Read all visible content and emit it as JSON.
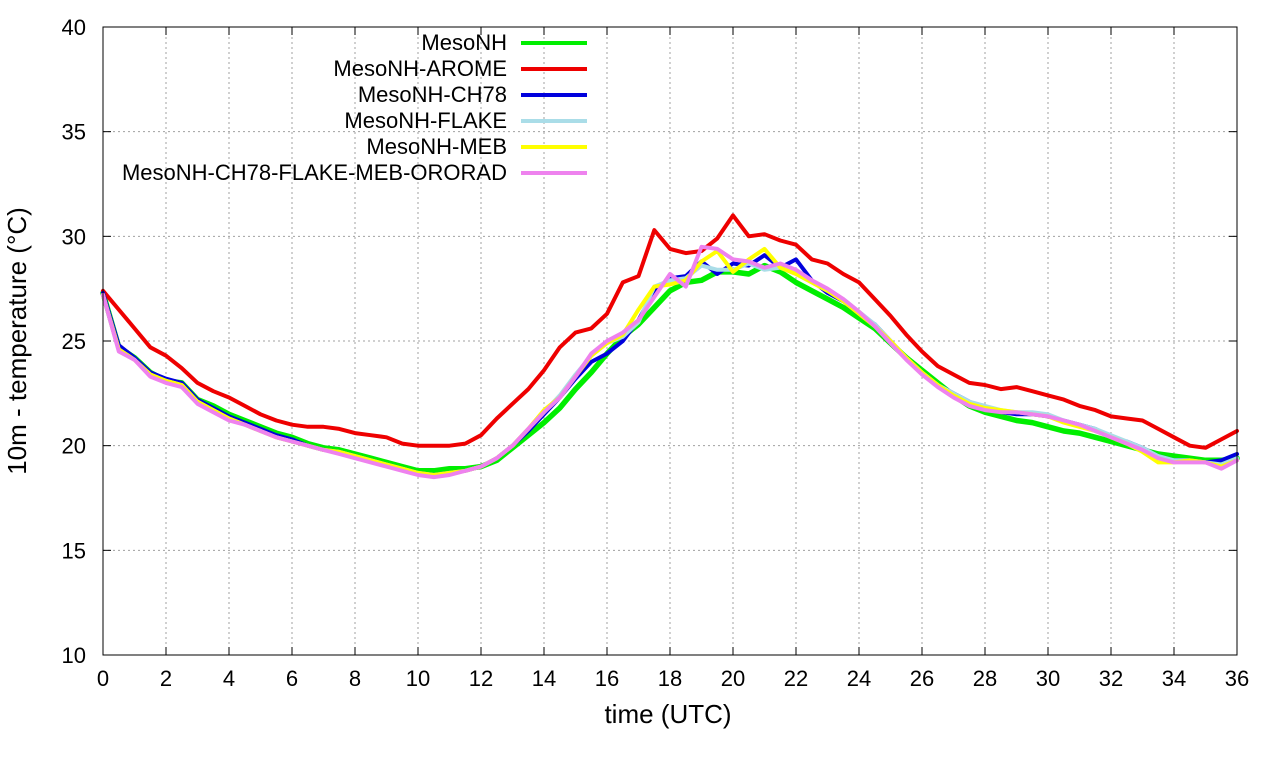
{
  "chart_data": {
    "type": "line",
    "xlabel": "time (UTC)",
    "ylabel": "10m - temperature (°C)",
    "xlim": [
      0,
      36
    ],
    "ylim": [
      10,
      40
    ],
    "xticks": [
      0,
      2,
      4,
      6,
      8,
      10,
      12,
      14,
      16,
      18,
      20,
      22,
      24,
      26,
      28,
      30,
      32,
      34,
      36
    ],
    "yticks": [
      10,
      15,
      20,
      25,
      30,
      35,
      40
    ],
    "grid": true,
    "legend_position": "top-left",
    "series": [
      {
        "name": "MesoNH",
        "color": "#00ee00",
        "x": [
          0,
          0.5,
          1,
          1.5,
          2,
          2.5,
          3,
          3.5,
          4,
          4.5,
          5,
          5.5,
          6,
          6.5,
          7,
          7.5,
          8,
          8.5,
          9,
          9.5,
          10,
          10.5,
          11,
          11.5,
          12,
          12.5,
          13,
          13.5,
          14,
          14.5,
          15,
          15.5,
          16,
          16.5,
          17,
          17.5,
          18,
          18.5,
          19,
          19.5,
          20,
          20.5,
          21,
          21.5,
          22,
          22.5,
          23,
          23.5,
          24,
          24.5,
          25,
          25.5,
          26,
          26.5,
          27,
          27.5,
          28,
          28.5,
          29,
          29.5,
          30,
          30.5,
          31,
          31.5,
          32,
          32.5,
          33,
          33.5,
          34,
          34.5,
          35,
          35.5,
          36
        ],
        "y": [
          27.3,
          24.7,
          24.2,
          23.5,
          23.1,
          23.0,
          22.2,
          21.9,
          21.5,
          21.2,
          20.9,
          20.6,
          20.4,
          20.1,
          19.9,
          19.8,
          19.6,
          19.4,
          19.2,
          19.0,
          18.8,
          18.8,
          18.9,
          18.9,
          19.0,
          19.3,
          19.9,
          20.5,
          21.1,
          21.8,
          22.7,
          23.5,
          24.4,
          25.2,
          25.8,
          26.6,
          27.4,
          27.8,
          27.9,
          28.3,
          28.3,
          28.2,
          28.6,
          28.3,
          27.8,
          27.4,
          27.0,
          26.6,
          26.1,
          25.6,
          24.9,
          24.2,
          23.6,
          23.0,
          22.4,
          21.9,
          21.6,
          21.4,
          21.2,
          21.1,
          20.9,
          20.7,
          20.6,
          20.4,
          20.2,
          20.0,
          19.8,
          19.6,
          19.5,
          19.4,
          19.3,
          19.3,
          19.4
        ]
      },
      {
        "name": "MesoNH-AROME",
        "color": "#ee0000",
        "x": [
          0,
          0.5,
          1,
          1.5,
          2,
          2.5,
          3,
          3.5,
          4,
          4.5,
          5,
          5.5,
          6,
          6.5,
          7,
          7.5,
          8,
          8.5,
          9,
          9.5,
          10,
          10.5,
          11,
          11.5,
          12,
          12.5,
          13,
          13.5,
          14,
          14.5,
          15,
          15.5,
          16,
          16.5,
          17,
          17.5,
          18,
          18.5,
          19,
          19.5,
          20,
          20.5,
          21,
          21.5,
          22,
          22.5,
          23,
          23.5,
          24,
          24.5,
          25,
          25.5,
          26,
          26.5,
          27,
          27.5,
          28,
          28.5,
          29,
          29.5,
          30,
          30.5,
          31,
          31.5,
          32,
          32.5,
          33,
          33.5,
          34,
          34.5,
          35,
          35.5,
          36
        ],
        "y": [
          27.4,
          26.5,
          25.6,
          24.7,
          24.3,
          23.7,
          23.0,
          22.6,
          22.3,
          21.9,
          21.5,
          21.2,
          21.0,
          20.9,
          20.9,
          20.8,
          20.6,
          20.5,
          20.4,
          20.1,
          20.0,
          20.0,
          20.0,
          20.1,
          20.5,
          21.3,
          22.0,
          22.7,
          23.6,
          24.7,
          25.4,
          25.6,
          26.3,
          27.8,
          28.1,
          30.3,
          29.4,
          29.2,
          29.3,
          29.9,
          31.0,
          30.0,
          30.1,
          29.8,
          29.6,
          28.9,
          28.7,
          28.2,
          27.8,
          27.0,
          26.2,
          25.3,
          24.5,
          23.8,
          23.4,
          23.0,
          22.9,
          22.7,
          22.8,
          22.6,
          22.4,
          22.2,
          21.9,
          21.7,
          21.4,
          21.3,
          21.2,
          20.8,
          20.4,
          20.0,
          19.9,
          20.3,
          20.7
        ]
      },
      {
        "name": "MesoNH-CH78",
        "color": "#0000dd",
        "x": [
          0,
          0.5,
          1,
          1.5,
          2,
          2.5,
          3,
          3.5,
          4,
          4.5,
          5,
          5.5,
          6,
          6.5,
          7,
          7.5,
          8,
          8.5,
          9,
          9.5,
          10,
          10.5,
          11,
          11.5,
          12,
          12.5,
          13,
          13.5,
          14,
          14.5,
          15,
          15.5,
          16,
          16.5,
          17,
          17.5,
          18,
          18.5,
          19,
          19.5,
          20,
          20.5,
          21,
          21.5,
          22,
          22.5,
          23,
          23.5,
          24,
          24.5,
          25,
          25.5,
          26,
          26.5,
          27,
          27.5,
          28,
          28.5,
          29,
          29.5,
          30,
          30.5,
          31,
          31.5,
          32,
          32.5,
          33,
          33.5,
          34,
          34.5,
          35,
          35.5,
          36
        ],
        "y": [
          27.3,
          24.8,
          24.2,
          23.5,
          23.2,
          23.0,
          22.2,
          21.8,
          21.4,
          21.1,
          20.8,
          20.5,
          20.3,
          20.0,
          19.8,
          19.7,
          19.5,
          19.3,
          19.1,
          18.9,
          18.7,
          18.6,
          18.7,
          18.8,
          19.0,
          19.4,
          20.0,
          20.7,
          21.5,
          22.3,
          23.2,
          24.0,
          24.4,
          25.0,
          26.0,
          27.4,
          28.0,
          28.1,
          28.8,
          28.2,
          28.7,
          28.6,
          29.1,
          28.5,
          28.9,
          27.9,
          27.3,
          26.9,
          26.3,
          25.8,
          25.0,
          24.2,
          23.5,
          22.9,
          22.5,
          22.1,
          21.8,
          21.6,
          21.5,
          21.5,
          21.4,
          21.2,
          21.0,
          20.8,
          20.4,
          20.2,
          19.9,
          19.5,
          19.3,
          19.3,
          19.2,
          19.3,
          19.6
        ]
      },
      {
        "name": "MesoNH-FLAKE",
        "color": "#aadde8",
        "x": [
          0,
          0.5,
          1,
          1.5,
          2,
          2.5,
          3,
          3.5,
          4,
          4.5,
          5,
          5.5,
          6,
          6.5,
          7,
          7.5,
          8,
          8.5,
          9,
          9.5,
          10,
          10.5,
          11,
          11.5,
          12,
          12.5,
          13,
          13.5,
          14,
          14.5,
          15,
          15.5,
          16,
          16.5,
          17,
          17.5,
          18,
          18.5,
          19,
          19.5,
          20,
          20.5,
          21,
          21.5,
          22,
          22.5,
          23,
          23.5,
          24,
          24.5,
          25,
          25.5,
          26,
          26.5,
          27,
          27.5,
          28,
          28.5,
          29,
          29.5,
          30,
          30.5,
          31,
          31.5,
          32,
          32.5,
          33,
          33.5,
          34,
          34.5,
          35,
          35.5,
          36
        ],
        "y": [
          27.2,
          24.6,
          24.1,
          23.4,
          23.1,
          22.9,
          22.1,
          21.7,
          21.3,
          21.0,
          20.7,
          20.4,
          20.2,
          20.0,
          19.8,
          19.7,
          19.5,
          19.3,
          19.1,
          18.9,
          18.7,
          18.6,
          18.7,
          18.8,
          19.0,
          19.4,
          20.0,
          20.8,
          21.6,
          22.4,
          23.4,
          24.3,
          24.9,
          25.2,
          25.9,
          27.6,
          27.9,
          28.0,
          28.6,
          28.4,
          28.4,
          28.7,
          28.4,
          28.5,
          28.2,
          27.8,
          27.4,
          27.0,
          26.4,
          25.8,
          25.0,
          24.2,
          23.5,
          22.9,
          22.5,
          22.1,
          21.9,
          21.7,
          21.6,
          21.6,
          21.5,
          21.2,
          21.0,
          20.8,
          20.5,
          20.2,
          19.9,
          19.5,
          19.3,
          19.3,
          19.2,
          19.1,
          19.4
        ]
      },
      {
        "name": "MesoNH-MEB",
        "color": "#ffff00",
        "x": [
          0,
          0.5,
          1,
          1.5,
          2,
          2.5,
          3,
          3.5,
          4,
          4.5,
          5,
          5.5,
          6,
          6.5,
          7,
          7.5,
          8,
          8.5,
          9,
          9.5,
          10,
          10.5,
          11,
          11.5,
          12,
          12.5,
          13,
          13.5,
          14,
          14.5,
          15,
          15.5,
          16,
          16.5,
          17,
          17.5,
          18,
          18.5,
          19,
          19.5,
          20,
          20.5,
          21,
          21.5,
          22,
          22.5,
          23,
          23.5,
          24,
          24.5,
          25,
          25.5,
          26,
          26.5,
          27,
          27.5,
          28,
          28.5,
          29,
          29.5,
          30,
          30.5,
          31,
          31.5,
          32,
          32.5,
          33,
          33.5,
          34,
          34.5,
          35,
          35.5,
          36
        ],
        "y": [
          27.2,
          24.6,
          24.1,
          23.4,
          23.1,
          22.9,
          22.1,
          21.7,
          21.3,
          21.0,
          20.7,
          20.4,
          20.2,
          20.0,
          19.8,
          19.7,
          19.5,
          19.3,
          19.1,
          18.9,
          18.7,
          18.6,
          18.7,
          18.8,
          19.0,
          19.4,
          20.0,
          20.8,
          21.7,
          22.3,
          23.3,
          24.3,
          24.9,
          25.3,
          26.5,
          27.6,
          27.7,
          27.9,
          28.8,
          29.3,
          28.3,
          28.9,
          29.4,
          28.5,
          28.2,
          27.8,
          27.4,
          26.9,
          26.3,
          25.7,
          25.0,
          24.2,
          23.5,
          22.9,
          22.4,
          22.0,
          21.8,
          21.7,
          21.6,
          21.5,
          21.4,
          21.1,
          20.9,
          20.7,
          20.4,
          20.1,
          19.7,
          19.2,
          19.2,
          19.3,
          19.2,
          19.0,
          19.3
        ]
      },
      {
        "name": "MesoNH-CH78-FLAKE-MEB-ORORAD",
        "color": "#ee82ee",
        "x": [
          0,
          0.5,
          1,
          1.5,
          2,
          2.5,
          3,
          3.5,
          4,
          4.5,
          5,
          5.5,
          6,
          6.5,
          7,
          7.5,
          8,
          8.5,
          9,
          9.5,
          10,
          10.5,
          11,
          11.5,
          12,
          12.5,
          13,
          13.5,
          14,
          14.5,
          15,
          15.5,
          16,
          16.5,
          17,
          17.5,
          18,
          18.5,
          19,
          19.5,
          20,
          20.5,
          21,
          21.5,
          22,
          22.5,
          23,
          23.5,
          24,
          24.5,
          25,
          25.5,
          26,
          26.5,
          27,
          27.5,
          28,
          28.5,
          29,
          29.5,
          30,
          30.5,
          31,
          31.5,
          32,
          32.5,
          33,
          33.5,
          34,
          34.5,
          35,
          35.5,
          36
        ],
        "y": [
          27.2,
          24.5,
          24.1,
          23.3,
          23.0,
          22.8,
          22.0,
          21.6,
          21.2,
          21.0,
          20.7,
          20.4,
          20.2,
          20.0,
          19.8,
          19.6,
          19.4,
          19.2,
          19.0,
          18.8,
          18.6,
          18.5,
          18.6,
          18.8,
          19.0,
          19.4,
          20.0,
          20.8,
          21.6,
          22.3,
          23.3,
          24.4,
          25.0,
          25.4,
          26.0,
          27.1,
          28.2,
          27.6,
          29.5,
          29.4,
          28.9,
          28.8,
          28.5,
          28.7,
          28.4,
          27.9,
          27.5,
          27.0,
          26.4,
          25.7,
          24.9,
          24.1,
          23.4,
          22.8,
          22.3,
          21.9,
          21.7,
          21.6,
          21.6,
          21.5,
          21.4,
          21.2,
          21.0,
          20.7,
          20.4,
          20.1,
          19.8,
          19.4,
          19.2,
          19.2,
          19.2,
          18.9,
          19.3
        ]
      }
    ]
  }
}
